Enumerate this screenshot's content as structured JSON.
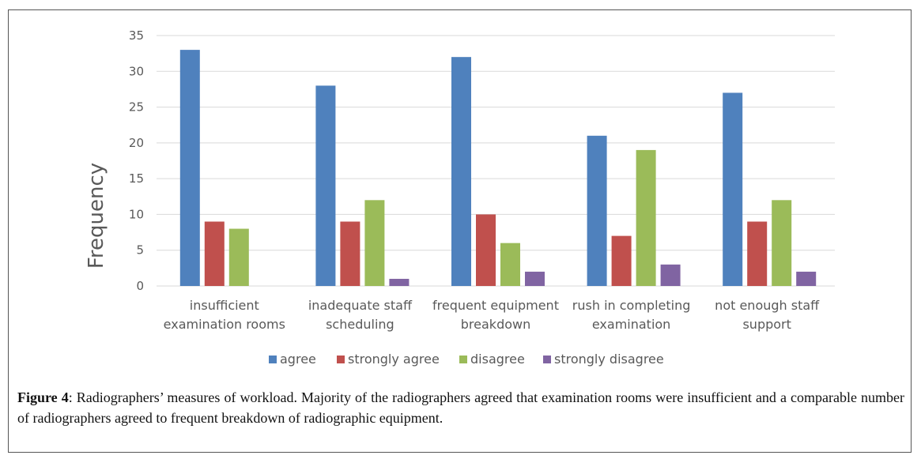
{
  "chart_data": {
    "type": "bar",
    "ylabel": "Frequency",
    "xlabel": "",
    "ylim": [
      0,
      35
    ],
    "ytick_step": 5,
    "grid": true,
    "legend_position": "bottom",
    "categories": [
      [
        "insufficient",
        "examination rooms"
      ],
      [
        "inadequate staff",
        "scheduling"
      ],
      [
        "frequent equipment",
        "breakdown"
      ],
      [
        "rush in completing",
        "examination"
      ],
      [
        "not enough staff",
        "support"
      ]
    ],
    "series": [
      {
        "name": "agree",
        "color": "#4F81BD",
        "values": [
          33,
          28,
          32,
          21,
          27
        ]
      },
      {
        "name": "strongly agree",
        "color": "#C0504D",
        "values": [
          9,
          9,
          10,
          7,
          9
        ]
      },
      {
        "name": "disagree",
        "color": "#9BBB59",
        "values": [
          8,
          12,
          6,
          19,
          12
        ]
      },
      {
        "name": "strongly disagree",
        "color": "#8064A2",
        "values": [
          0,
          1,
          2,
          3,
          2
        ]
      }
    ]
  },
  "caption": {
    "label": "Figure 4",
    "text": ": Radiographers’ measures of workload. Majority of the radiographers agreed that examination rooms were insufficient and a comparable number of radiographers agreed to frequent breakdown of radiographic equipment."
  },
  "colors": {
    "grid": "#D9D9D9",
    "tick_text": "#595959",
    "axis_title": "#595959"
  }
}
